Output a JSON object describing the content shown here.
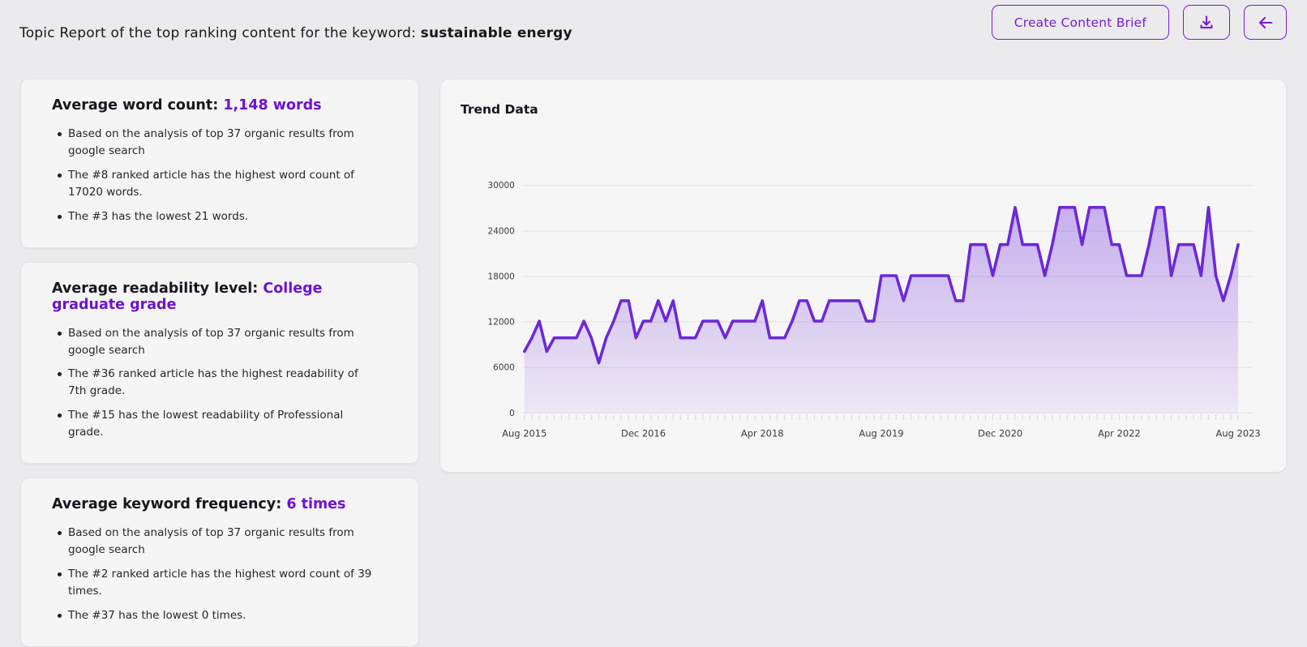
{
  "header": {
    "title_prefix": "Topic Report of the top ranking content for the keyword: ",
    "keyword": "sustainable energy",
    "create_brief_label": "Create Content Brief",
    "download_icon": "download-icon",
    "back_icon": "arrow-left-icon",
    "accent_color": "#7a1bd8"
  },
  "cards": [
    {
      "title": "Average word count:",
      "value": "1,148 words",
      "bullets": [
        "Based on the analysis of top 37 organic results from google search",
        "The #8 ranked article has the highest word count of 17020 words.",
        "The #3 has the lowest 21 words."
      ]
    },
    {
      "title": "Average readability level:",
      "value": "College graduate grade",
      "bullets": [
        "Based on the analysis of top 37 organic results from google search",
        "The #36 ranked article has the highest readability of 7th grade.",
        "The #15 has the lowest readability of Professional grade."
      ]
    },
    {
      "title": "Average keyword frequency:",
      "value": "6 times",
      "bullets": [
        "Based on the analysis of top 37 organic results from google search",
        "The #2 ranked article has the highest word count of 39 times.",
        "The #37 has the lowest 0 times."
      ]
    }
  ],
  "chart_card": {
    "title": "Trend Data"
  },
  "colors": {
    "page_bg": "#ebebee",
    "card_bg": "#f5f5f6",
    "accent_text": "#6e12d0",
    "line": "#6d28d9",
    "grid": "#e2e2e7",
    "tick": "#d2d2d8",
    "axis_text": "#3a3a40"
  },
  "chart_data": {
    "type": "area",
    "title": "Trend Data",
    "x_start": "Aug 2015",
    "x_end": "Aug 2023",
    "frequency": "monthly",
    "x_tick_labels": [
      "Aug 2015",
      "Dec 2016",
      "Apr 2018",
      "Aug 2019",
      "Dec 2020",
      "Apr 2022",
      "Aug 2023"
    ],
    "x_tick_every": 16,
    "y_ticks": [
      0,
      6000,
      12000,
      18000,
      24000,
      30000
    ],
    "ylim": [
      0,
      30000
    ],
    "grid": "horizontal",
    "legend": "none",
    "values": [
      8100,
      9900,
      12100,
      8100,
      9900,
      9900,
      9900,
      9900,
      12100,
      9900,
      6600,
      9900,
      12100,
      14800,
      14800,
      9900,
      12100,
      12100,
      14800,
      12100,
      14800,
      9900,
      9900,
      9900,
      12100,
      12100,
      12100,
      9900,
      12100,
      12100,
      12100,
      12100,
      14800,
      9900,
      9900,
      9900,
      12100,
      14800,
      14800,
      12100,
      12100,
      14800,
      14800,
      14800,
      14800,
      14800,
      12100,
      12100,
      18100,
      18100,
      18100,
      14800,
      18100,
      18100,
      18100,
      18100,
      18100,
      18100,
      14800,
      14800,
      22200,
      22200,
      22200,
      18100,
      22200,
      22200,
      27100,
      22200,
      22200,
      22200,
      18100,
      22200,
      27100,
      27100,
      27100,
      22200,
      27100,
      27100,
      27100,
      22200,
      22200,
      18100,
      18100,
      18100,
      22200,
      27100,
      27100,
      18100,
      22200,
      22200,
      22200,
      18100,
      27100,
      18100,
      14800,
      18100,
      22200
    ]
  }
}
